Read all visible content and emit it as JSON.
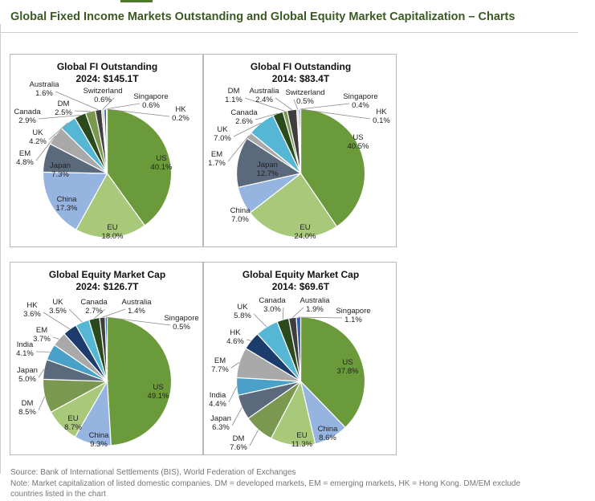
{
  "page": {
    "title": "Global Fixed Income Markets Outstanding and Global Equity Market Capitalization – Charts",
    "source": "Source: Bank of International Settlements (BIS), World Federation of Exchanges",
    "note_line1": "Note: Market capitalization of listed domestic companies. DM = developed markets, EM = emerging markets, HK = Hong Kong. DM/EM exclude",
    "note_line2": "countries listed in the chart"
  },
  "colors": {
    "US": "#6b9a3a",
    "EU": "#a8c97a",
    "China": "#95b4e0",
    "Japan": "#5a6a7c",
    "EM": "#a9a9a9",
    "UK": "#56b7d4",
    "Canada": "#2b4a1c",
    "DM": "#7a9850",
    "Australia": "#3e3e3e",
    "Switzerland": "#d2d2d2",
    "Singapore": "#2f5fa8",
    "HK": "#1d3c6e",
    "India": "#4aa0c8"
  },
  "chart_data": [
    {
      "type": "pie",
      "title": "Global FI Outstanding",
      "subtitle": "2024: $145.1T",
      "slices": [
        {
          "name": "US",
          "value": 40.1,
          "label": "40.1%"
        },
        {
          "name": "EU",
          "value": 18.0,
          "label": "18.0%"
        },
        {
          "name": "China",
          "value": 17.3,
          "label": "17.3%"
        },
        {
          "name": "Japan",
          "value": 7.3,
          "label": "7.3%"
        },
        {
          "name": "EM",
          "value": 4.8,
          "label": "4.8%"
        },
        {
          "name": "UK",
          "value": 4.2,
          "label": "4.2%"
        },
        {
          "name": "Canada",
          "value": 2.9,
          "label": "2.9%"
        },
        {
          "name": "DM",
          "value": 2.5,
          "label": "2.5%"
        },
        {
          "name": "Australia",
          "value": 1.6,
          "label": "1.6%"
        },
        {
          "name": "Switzerland",
          "value": 0.6,
          "label": "0.6%"
        },
        {
          "name": "Singapore",
          "value": 0.6,
          "label": "0.6%"
        },
        {
          "name": "HK",
          "value": 0.2,
          "label": "0.2%"
        }
      ]
    },
    {
      "type": "pie",
      "title": "Global FI Outstanding",
      "subtitle": "2014: $83.4T",
      "slices": [
        {
          "name": "US",
          "value": 40.5,
          "label": "40.5%"
        },
        {
          "name": "EU",
          "value": 24.0,
          "label": "24.0%"
        },
        {
          "name": "China",
          "value": 7.0,
          "label": "7.0%"
        },
        {
          "name": "Japan",
          "value": 12.7,
          "label": "12.7%"
        },
        {
          "name": "EM",
          "value": 1.7,
          "label": "1.7%"
        },
        {
          "name": "UK",
          "value": 7.0,
          "label": "7.0%"
        },
        {
          "name": "Canada",
          "value": 2.6,
          "label": "2.6%"
        },
        {
          "name": "DM",
          "value": 1.1,
          "label": "1.1%"
        },
        {
          "name": "Australia",
          "value": 2.4,
          "label": "2.4%"
        },
        {
          "name": "Switzerland",
          "value": 0.5,
          "label": "0.5%"
        },
        {
          "name": "Singapore",
          "value": 0.4,
          "label": "0.4%"
        },
        {
          "name": "HK",
          "value": 0.1,
          "label": "0.1%"
        }
      ]
    },
    {
      "type": "pie",
      "title": "Global Equity Market Cap",
      "subtitle": "2024: $126.7T",
      "slices": [
        {
          "name": "US",
          "value": 49.1,
          "label": "49.1%"
        },
        {
          "name": "China",
          "value": 9.3,
          "label": "9.3%"
        },
        {
          "name": "EU",
          "value": 8.7,
          "label": "8.7%"
        },
        {
          "name": "DM",
          "value": 8.5,
          "label": "8.5%"
        },
        {
          "name": "Japan",
          "value": 5.0,
          "label": "5.0%"
        },
        {
          "name": "India",
          "value": 4.1,
          "label": "4.1%"
        },
        {
          "name": "EM",
          "value": 3.7,
          "label": "3.7%"
        },
        {
          "name": "HK",
          "value": 3.6,
          "label": "3.6%"
        },
        {
          "name": "UK",
          "value": 3.5,
          "label": "3.5%"
        },
        {
          "name": "Canada",
          "value": 2.7,
          "label": "2.7%"
        },
        {
          "name": "Australia",
          "value": 1.4,
          "label": "1.4%"
        },
        {
          "name": "Singapore",
          "value": 0.5,
          "label": "0.5%"
        }
      ]
    },
    {
      "type": "pie",
      "title": "Global Equity Market Cap",
      "subtitle": "2014: $69.6T",
      "slices": [
        {
          "name": "US",
          "value": 37.8,
          "label": "37.8%"
        },
        {
          "name": "China",
          "value": 8.6,
          "label": "8.6%"
        },
        {
          "name": "EU",
          "value": 11.3,
          "label": "11.3%"
        },
        {
          "name": "DM",
          "value": 7.6,
          "label": "7.6%"
        },
        {
          "name": "Japan",
          "value": 6.3,
          "label": "6.3%"
        },
        {
          "name": "India",
          "value": 4.4,
          "label": "4.4%"
        },
        {
          "name": "EM",
          "value": 7.7,
          "label": "7.7%"
        },
        {
          "name": "HK",
          "value": 4.6,
          "label": "4.6%"
        },
        {
          "name": "UK",
          "value": 5.8,
          "label": "5.8%"
        },
        {
          "name": "Canada",
          "value": 3.0,
          "label": "3.0%"
        },
        {
          "name": "Australia",
          "value": 1.9,
          "label": "1.9%"
        },
        {
          "name": "Singapore",
          "value": 1.1,
          "label": "1.1%"
        }
      ]
    }
  ]
}
